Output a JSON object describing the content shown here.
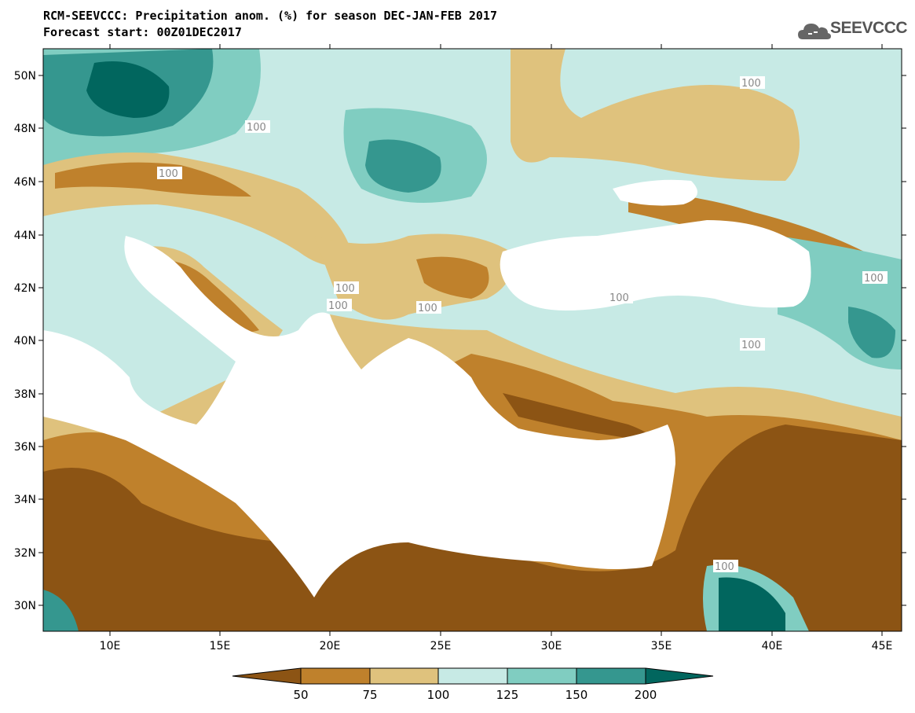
{
  "title": {
    "line1": "RCM-SEEVCCC: Precipitation anom. (%) for season DEC-JAN-FEB 2017",
    "line2": "Forecast start: 00Z01DEC2017"
  },
  "logo": {
    "text": "SEEVCCC",
    "icon": "cloud-icon"
  },
  "map": {
    "lon_ticks": [
      "10E",
      "15E",
      "20E",
      "25E",
      "30E",
      "35E",
      "40E",
      "45E"
    ],
    "lat_ticks": [
      "50N",
      "48N",
      "46N",
      "44N",
      "42N",
      "40N",
      "38N",
      "36N",
      "34N",
      "32N",
      "30N"
    ],
    "contour_labels": [
      "100",
      "100",
      "100",
      "100",
      "100",
      "100",
      "100",
      "100",
      "100",
      "100"
    ]
  },
  "colorbar": {
    "labels": [
      "50",
      "75",
      "100",
      "125",
      "150",
      "200"
    ],
    "colors": [
      "#8c5414",
      "#bf812c",
      "#dfc27d",
      "#c7eae5",
      "#80cdc1",
      "#35978f",
      "#01665e"
    ]
  }
}
